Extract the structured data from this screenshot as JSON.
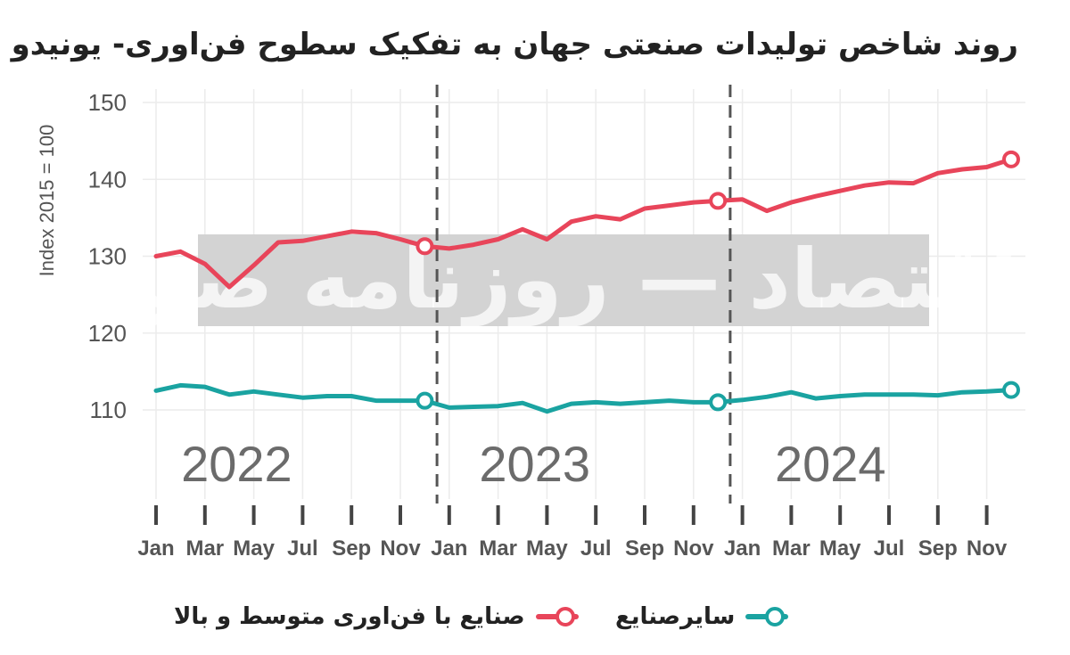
{
  "chart_data": {
    "type": "line",
    "title": "روند شاخص تولیدات صنعتی جهان به تفکیک سطوح فن‌اوری- یونیدو",
    "ylabel": "Index 2015 = 100",
    "xlabel": "",
    "ylim": [
      100,
      150
    ],
    "yticks": [
      110,
      120,
      130,
      140,
      150
    ],
    "xtick_labels": [
      "Jan",
      "Mar",
      "May",
      "Jul",
      "Sep",
      "Nov",
      "Jan",
      "Mar",
      "May",
      "Jul",
      "Sep",
      "Nov",
      "Jan",
      "Mar",
      "May",
      "Jul",
      "Sep",
      "Nov"
    ],
    "year_labels": [
      "2022",
      "2023",
      "2024"
    ],
    "grid": true,
    "legend_position": "bottom",
    "watermark": "دنیای اقتصاد — روزنامه صبح ایران",
    "series": [
      {
        "name": "صنایع با فن‌اوری متوسط و بالا",
        "color": "#e8455a",
        "marker_indices": [
          11,
          23,
          35
        ],
        "values": [
          130,
          130.6,
          129,
          126,
          128.8,
          131.8,
          132,
          132.6,
          133.2,
          133,
          132.2,
          131.3,
          131,
          131.5,
          132.2,
          133.5,
          132.2,
          134.5,
          135.2,
          134.8,
          136.2,
          136.6,
          137,
          137.2,
          137.4,
          135.9,
          137,
          137.8,
          138.5,
          139.2,
          139.6,
          139.5,
          140.8,
          141.3,
          141.6,
          142.6
        ]
      },
      {
        "name": "سایرصنایع",
        "color": "#1aa3a1",
        "marker_indices": [
          11,
          23,
          35
        ],
        "values": [
          112.5,
          113.2,
          113,
          112,
          112.4,
          112,
          111.6,
          111.8,
          111.8,
          111.2,
          111.2,
          111.2,
          110.3,
          110.4,
          110.5,
          110.9,
          109.8,
          110.8,
          111,
          110.8,
          111,
          111.2,
          111,
          111,
          111.3,
          111.7,
          112.3,
          111.5,
          111.8,
          112,
          112,
          112,
          111.9,
          112.3,
          112.4,
          112.6
        ]
      }
    ]
  }
}
